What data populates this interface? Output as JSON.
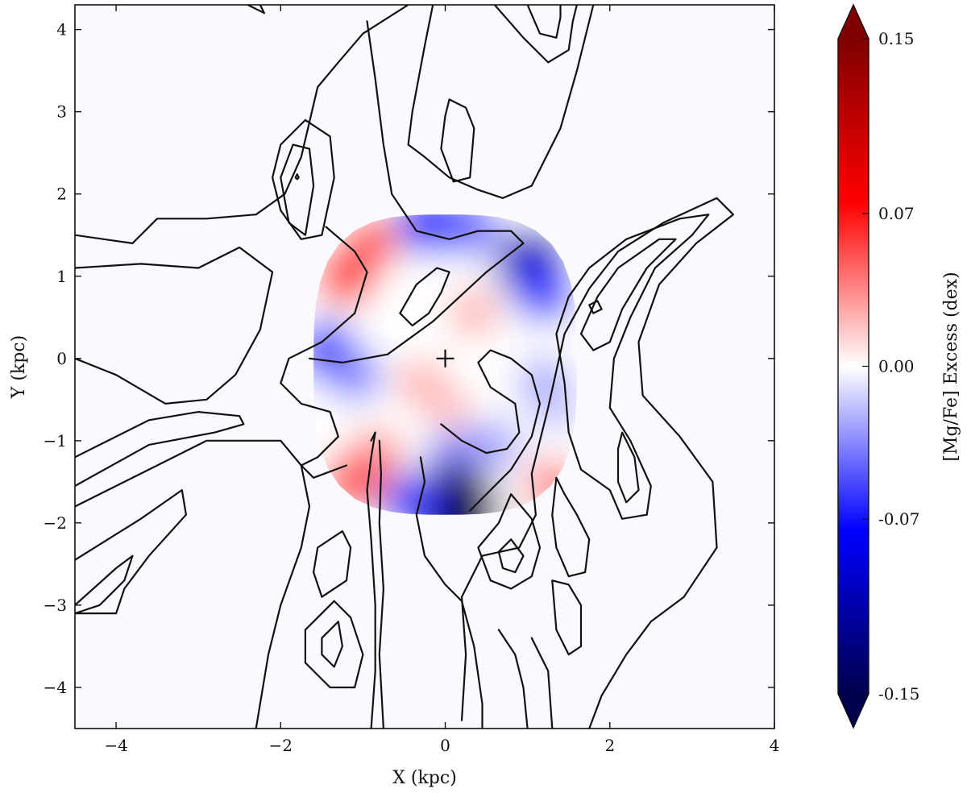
{
  "chart_data": {
    "type": "heatmap",
    "title": "",
    "xlabel": "X (kpc)",
    "ylabel": "Y (kpc)",
    "xlim": [
      -4.5,
      4.0
    ],
    "ylim": [
      -4.5,
      4.3
    ],
    "xticks": [
      -4,
      -2,
      0,
      2,
      4
    ],
    "yticks": [
      -4,
      -3,
      -2,
      -1,
      0,
      1,
      2,
      3,
      4
    ],
    "xtick_labels": [
      "−4",
      "−2",
      "0",
      "2",
      "4"
    ],
    "ytick_labels": [
      "−4",
      "−3",
      "−2",
      "−1",
      "0",
      "1",
      "2",
      "3",
      "4"
    ],
    "grid": false,
    "center_marker": {
      "x": 0,
      "y": 0,
      "symbol": "+"
    },
    "excess_map": {
      "quantity": "[Mg/Fe] Excess",
      "unit": "dex",
      "extent_x": [
        -1.6,
        1.6
      ],
      "extent_y": [
        -1.9,
        1.75
      ],
      "features": [
        {
          "x": -1.2,
          "y": 1.0,
          "value": 0.06
        },
        {
          "x": -0.9,
          "y": 1.4,
          "value": 0.05
        },
        {
          "x": -1.45,
          "y": 0.1,
          "value": -0.06
        },
        {
          "x": -1.1,
          "y": -0.2,
          "value": -0.04
        },
        {
          "x": -0.2,
          "y": 1.65,
          "value": -0.07
        },
        {
          "x": 0.3,
          "y": 1.6,
          "value": -0.05
        },
        {
          "x": 1.05,
          "y": 1.15,
          "value": -0.1
        },
        {
          "x": 1.2,
          "y": 0.8,
          "value": -0.06
        },
        {
          "x": 0.35,
          "y": 0.55,
          "value": 0.025
        },
        {
          "x": -0.3,
          "y": -0.3,
          "value": 0.025
        },
        {
          "x": 0.05,
          "y": -0.6,
          "value": 0.02
        },
        {
          "x": 1.2,
          "y": -0.3,
          "value": -0.03
        },
        {
          "x": 1.35,
          "y": -0.6,
          "value": -0.02
        },
        {
          "x": 0.1,
          "y": -1.2,
          "value": -0.04
        },
        {
          "x": 0.6,
          "y": -1.05,
          "value": -0.03
        },
        {
          "x": 0.1,
          "y": -1.85,
          "value": -0.15
        },
        {
          "x": -0.4,
          "y": -1.75,
          "value": -0.06
        },
        {
          "x": -1.1,
          "y": -1.5,
          "value": 0.06
        },
        {
          "x": -0.85,
          "y": -1.2,
          "value": 0.04
        },
        {
          "x": 1.3,
          "y": -1.55,
          "value": 0.04
        }
      ]
    },
    "contours": [
      [
        [
          -2.4,
          4.3
        ],
        [
          -2.2,
          4.2
        ],
        [
          -2.25,
          4.3
        ]
      ],
      [
        [
          -4.5,
          1.5
        ],
        [
          -3.8,
          1.4
        ],
        [
          -3.5,
          1.7
        ],
        [
          -2.9,
          1.7
        ],
        [
          -2.3,
          1.75
        ],
        [
          -1.95,
          2.0
        ],
        [
          -1.75,
          2.45
        ],
        [
          -1.55,
          3.3
        ],
        [
          -1.3,
          3.6
        ],
        [
          -1.0,
          3.95
        ],
        [
          -0.45,
          4.3
        ]
      ],
      [
        [
          -2.1,
          2.2
        ],
        [
          -2.0,
          2.6
        ],
        [
          -1.7,
          2.9
        ],
        [
          -1.4,
          2.7
        ],
        [
          -1.35,
          2.2
        ],
        [
          -1.5,
          1.5
        ],
        [
          -1.75,
          1.45
        ],
        [
          -2.0,
          1.8
        ],
        [
          -2.1,
          2.2
        ]
      ],
      [
        [
          -2.0,
          2.2
        ],
        [
          -1.85,
          2.6
        ],
        [
          -1.65,
          2.55
        ],
        [
          -1.6,
          2.1
        ],
        [
          -1.7,
          1.5
        ],
        [
          -1.9,
          1.65
        ],
        [
          -2.0,
          2.2
        ]
      ],
      [
        [
          -1.78,
          2.2
        ],
        [
          -1.8,
          2.24
        ],
        [
          -1.82,
          2.2
        ],
        [
          -1.8,
          2.18
        ],
        [
          -1.78,
          2.2
        ]
      ],
      [
        [
          -4.5,
          0.0
        ],
        [
          -4.0,
          -0.2
        ],
        [
          -3.4,
          -0.55
        ],
        [
          -2.9,
          -0.5
        ],
        [
          -2.55,
          -0.2
        ],
        [
          -2.25,
          0.35
        ],
        [
          -2.1,
          1.05
        ],
        [
          -2.5,
          1.35
        ],
        [
          -3.0,
          1.1
        ],
        [
          -3.7,
          1.15
        ],
        [
          -4.5,
          1.1
        ]
      ],
      [
        [
          -4.5,
          -1.2
        ],
        [
          -3.6,
          -0.75
        ],
        [
          -3.0,
          -0.65
        ],
        [
          -2.5,
          -0.7
        ],
        [
          -2.45,
          -0.8
        ],
        [
          -2.8,
          -0.9
        ],
        [
          -3.6,
          -1.05
        ],
        [
          -4.5,
          -1.55
        ]
      ],
      [
        [
          -4.5,
          -1.8
        ],
        [
          -3.5,
          -1.3
        ],
        [
          -2.9,
          -1.0
        ],
        [
          -2.4,
          -1.0
        ],
        [
          -2.0,
          -1.0
        ],
        [
          -1.75,
          -1.3
        ],
        [
          -1.65,
          -1.8
        ],
        [
          -1.75,
          -2.3
        ],
        [
          -2.0,
          -3.0
        ],
        [
          -2.15,
          -3.6
        ],
        [
          -2.3,
          -4.5
        ]
      ],
      [
        [
          -4.5,
          -2.45
        ],
        [
          -4.1,
          -2.2
        ],
        [
          -3.7,
          -1.95
        ],
        [
          -3.2,
          -1.6
        ],
        [
          -3.15,
          -1.9
        ],
        [
          -3.6,
          -2.4
        ],
        [
          -3.9,
          -2.8
        ],
        [
          -4.0,
          -3.1
        ],
        [
          -4.5,
          -3.1
        ]
      ],
      [
        [
          -4.5,
          -3.0
        ],
        [
          -4.0,
          -2.55
        ],
        [
          -3.8,
          -2.4
        ],
        [
          -3.9,
          -2.7
        ],
        [
          -4.2,
          -3.0
        ],
        [
          -4.5,
          -3.1
        ]
      ],
      [
        [
          -1.55,
          -2.3
        ],
        [
          -1.25,
          -2.1
        ],
        [
          -1.15,
          -2.3
        ],
        [
          -1.2,
          -2.7
        ],
        [
          -1.5,
          -2.9
        ],
        [
          -1.6,
          -2.6
        ],
        [
          -1.55,
          -2.3
        ]
      ],
      [
        [
          -1.7,
          -3.3
        ],
        [
          -1.35,
          -2.95
        ],
        [
          -1.15,
          -3.15
        ],
        [
          -1.0,
          -3.6
        ],
        [
          -1.1,
          -4.0
        ],
        [
          -1.4,
          -4.0
        ],
        [
          -1.7,
          -3.7
        ],
        [
          -1.7,
          -3.3
        ]
      ],
      [
        [
          -1.5,
          -3.4
        ],
        [
          -1.3,
          -3.2
        ],
        [
          -1.25,
          -3.5
        ],
        [
          -1.35,
          -3.75
        ],
        [
          -1.5,
          -3.6
        ],
        [
          -1.5,
          -3.4
        ]
      ],
      [
        [
          -0.9,
          -1.0
        ],
        [
          -0.85,
          -0.9
        ],
        [
          -0.9,
          -1.2
        ],
        [
          -0.95,
          -1.6
        ],
        [
          -0.9,
          -2.2
        ],
        [
          -0.85,
          -3.0
        ],
        [
          -0.85,
          -3.8
        ],
        [
          -0.9,
          -4.5
        ]
      ],
      [
        [
          -0.8,
          -1.0
        ],
        [
          -0.78,
          -1.4
        ],
        [
          -0.8,
          -2.0
        ],
        [
          -0.75,
          -2.8
        ],
        [
          -0.8,
          -3.6
        ],
        [
          -0.75,
          -4.5
        ]
      ],
      [
        [
          -1.45,
          1.6
        ],
        [
          -1.1,
          1.3
        ],
        [
          -0.95,
          1.05
        ],
        [
          -1.1,
          0.55
        ],
        [
          -1.5,
          0.2
        ],
        [
          -1.9,
          0.0
        ],
        [
          -2.0,
          -0.3
        ],
        [
          -1.75,
          -0.55
        ],
        [
          -1.4,
          -0.65
        ],
        [
          -1.3,
          -0.95
        ],
        [
          -1.55,
          -1.2
        ],
        [
          -1.75,
          -1.3
        ],
        [
          -1.6,
          -1.45
        ],
        [
          -1.2,
          -1.3
        ]
      ],
      [
        [
          -0.55,
          0.55
        ],
        [
          -0.35,
          0.9
        ],
        [
          -0.1,
          1.1
        ],
        [
          0.05,
          1.05
        ],
        [
          -0.05,
          0.8
        ],
        [
          -0.2,
          0.55
        ],
        [
          -0.4,
          0.4
        ],
        [
          -0.55,
          0.55
        ]
      ],
      [
        [
          -0.95,
          4.1
        ],
        [
          -0.85,
          3.4
        ],
        [
          -0.75,
          2.6
        ],
        [
          -0.65,
          2.0
        ],
        [
          -0.35,
          1.55
        ],
        [
          0.05,
          1.45
        ],
        [
          0.4,
          1.55
        ],
        [
          0.8,
          1.55
        ],
        [
          0.95,
          1.4
        ],
        [
          0.5,
          1.05
        ],
        [
          -0.15,
          0.45
        ],
        [
          -0.7,
          0.05
        ],
        [
          -1.25,
          -0.05
        ],
        [
          -1.65,
          0.0
        ]
      ],
      [
        [
          -0.15,
          4.3
        ],
        [
          -0.25,
          3.8
        ],
        [
          -0.4,
          3.0
        ],
        [
          -0.45,
          2.6
        ],
        [
          -0.25,
          2.45
        ],
        [
          0.05,
          2.2
        ],
        [
          0.4,
          2.05
        ],
        [
          0.7,
          1.95
        ],
        [
          1.05,
          2.1
        ],
        [
          1.4,
          2.8
        ],
        [
          1.6,
          3.5
        ],
        [
          1.8,
          4.3
        ]
      ],
      [
        [
          0.0,
          2.95
        ],
        [
          -0.05,
          2.55
        ],
        [
          0.1,
          2.15
        ],
        [
          0.3,
          2.2
        ],
        [
          0.35,
          2.8
        ],
        [
          0.25,
          3.05
        ],
        [
          0.05,
          3.15
        ],
        [
          0.0,
          2.95
        ]
      ],
      [
        [
          0.6,
          4.3
        ],
        [
          0.95,
          3.9
        ],
        [
          1.25,
          3.6
        ],
        [
          1.5,
          3.75
        ],
        [
          1.55,
          4.1
        ],
        [
          1.6,
          4.3
        ]
      ],
      [
        [
          1.0,
          4.3
        ],
        [
          1.15,
          3.95
        ],
        [
          1.35,
          3.9
        ],
        [
          1.4,
          4.15
        ],
        [
          1.4,
          4.3
        ]
      ],
      [
        [
          -0.3,
          -1.2
        ],
        [
          -0.25,
          -1.5
        ],
        [
          -0.35,
          -1.9
        ],
        [
          -0.25,
          -2.4
        ],
        [
          0.0,
          -2.75
        ],
        [
          0.2,
          -2.95
        ],
        [
          0.35,
          -3.5
        ],
        [
          0.45,
          -4.2
        ],
        [
          0.45,
          -4.5
        ]
      ],
      [
        [
          0.3,
          -1.85
        ],
        [
          0.55,
          -1.6
        ],
        [
          0.8,
          -1.35
        ],
        [
          1.05,
          -0.95
        ],
        [
          1.15,
          -0.55
        ],
        [
          1.05,
          -0.2
        ],
        [
          0.8,
          0.0
        ],
        [
          0.55,
          0.1
        ],
        [
          0.4,
          -0.05
        ],
        [
          0.55,
          -0.35
        ],
        [
          0.85,
          -0.55
        ],
        [
          0.9,
          -0.9
        ],
        [
          0.75,
          -1.1
        ],
        [
          0.5,
          -1.15
        ],
        [
          0.2,
          -1.0
        ],
        [
          -0.05,
          -0.8
        ]
      ],
      [
        [
          0.2,
          -4.4
        ],
        [
          0.25,
          -3.6
        ],
        [
          0.2,
          -2.9
        ],
        [
          0.45,
          -2.4
        ],
        [
          0.9,
          -2.3
        ],
        [
          1.1,
          -1.9
        ],
        [
          1.05,
          -1.4
        ],
        [
          1.25,
          -0.6
        ],
        [
          1.45,
          0.3
        ],
        [
          1.75,
          0.85
        ],
        [
          2.1,
          1.3
        ],
        [
          2.65,
          1.65
        ],
        [
          3.3,
          1.95
        ],
        [
          3.5,
          1.75
        ],
        [
          3.05,
          1.4
        ],
        [
          2.6,
          0.9
        ],
        [
          2.35,
          0.2
        ],
        [
          2.4,
          -0.45
        ],
        [
          2.85,
          -0.95
        ],
        [
          3.25,
          -1.5
        ],
        [
          3.3,
          -2.3
        ],
        [
          2.9,
          -2.9
        ],
        [
          2.5,
          -3.2
        ],
        [
          2.2,
          -3.6
        ],
        [
          1.9,
          -4.1
        ],
        [
          1.75,
          -4.5
        ]
      ],
      [
        [
          1.35,
          0.3
        ],
        [
          1.5,
          0.75
        ],
        [
          1.75,
          1.1
        ],
        [
          2.2,
          1.45
        ],
        [
          2.85,
          1.7
        ],
        [
          3.2,
          1.75
        ],
        [
          3.0,
          1.5
        ],
        [
          2.55,
          1.1
        ],
        [
          2.25,
          0.5
        ],
        [
          2.05,
          0.0
        ],
        [
          2.0,
          -0.6
        ],
        [
          2.25,
          -1.0
        ],
        [
          2.5,
          -1.55
        ],
        [
          2.45,
          -1.9
        ],
        [
          2.15,
          -1.95
        ],
        [
          2.0,
          -1.6
        ],
        [
          1.65,
          -1.35
        ],
        [
          1.5,
          -0.9
        ],
        [
          1.45,
          -0.3
        ],
        [
          1.35,
          0.3
        ]
      ],
      [
        [
          1.65,
          0.3
        ],
        [
          1.85,
          0.75
        ],
        [
          2.1,
          1.1
        ],
        [
          2.6,
          1.45
        ],
        [
          2.8,
          1.45
        ],
        [
          2.45,
          1.1
        ],
        [
          2.15,
          0.6
        ],
        [
          2.0,
          0.2
        ],
        [
          1.8,
          0.1
        ],
        [
          1.65,
          0.3
        ]
      ],
      [
        [
          1.75,
          0.65
        ],
        [
          1.85,
          0.7
        ],
        [
          1.9,
          0.6
        ],
        [
          1.8,
          0.55
        ],
        [
          1.75,
          0.65
        ]
      ],
      [
        [
          2.15,
          -0.9
        ],
        [
          2.3,
          -1.2
        ],
        [
          2.35,
          -1.6
        ],
        [
          2.2,
          -1.75
        ],
        [
          2.1,
          -1.5
        ],
        [
          2.1,
          -1.1
        ],
        [
          2.15,
          -0.9
        ]
      ],
      [
        [
          0.4,
          -2.3
        ],
        [
          0.65,
          -2.0
        ],
        [
          0.8,
          -1.65
        ],
        [
          1.05,
          -1.95
        ],
        [
          1.15,
          -2.3
        ],
        [
          1.05,
          -2.65
        ],
        [
          0.8,
          -2.8
        ],
        [
          0.55,
          -2.7
        ],
        [
          0.4,
          -2.3
        ]
      ],
      [
        [
          0.65,
          -2.35
        ],
        [
          0.8,
          -2.2
        ],
        [
          0.95,
          -2.4
        ],
        [
          0.85,
          -2.6
        ],
        [
          0.7,
          -2.55
        ],
        [
          0.65,
          -2.35
        ]
      ],
      [
        [
          1.35,
          -1.45
        ],
        [
          1.45,
          -1.65
        ],
        [
          1.6,
          -1.9
        ],
        [
          1.75,
          -2.2
        ],
        [
          1.7,
          -2.6
        ],
        [
          1.5,
          -2.65
        ],
        [
          1.35,
          -2.3
        ],
        [
          1.3,
          -1.9
        ],
        [
          1.35,
          -1.45
        ]
      ],
      [
        [
          1.3,
          -2.7
        ],
        [
          1.5,
          -2.75
        ],
        [
          1.65,
          -3.0
        ],
        [
          1.65,
          -3.5
        ],
        [
          1.5,
          -3.6
        ],
        [
          1.35,
          -3.3
        ],
        [
          1.3,
          -2.7
        ]
      ],
      [
        [
          1.05,
          -3.4
        ],
        [
          1.25,
          -3.8
        ],
        [
          1.3,
          -4.5
        ]
      ],
      [
        [
          0.65,
          -3.3
        ],
        [
          0.85,
          -3.6
        ],
        [
          0.95,
          -4.0
        ],
        [
          1.0,
          -4.5
        ]
      ]
    ],
    "colorbar": {
      "label": "[Mg/Fe] Excess (dex)",
      "min": -0.15,
      "max": 0.15,
      "extend": "both",
      "ticks": [
        0.15,
        0.07,
        0.0,
        -0.07,
        -0.15
      ],
      "tick_labels": [
        "0.15",
        "0.07",
        "0.00",
        "-0.07",
        "-0.15"
      ],
      "colormap": "seismic",
      "colors": [
        "#00004c",
        "#0000ff",
        "#ffffff",
        "#ff0000",
        "#7f0000"
      ]
    }
  }
}
